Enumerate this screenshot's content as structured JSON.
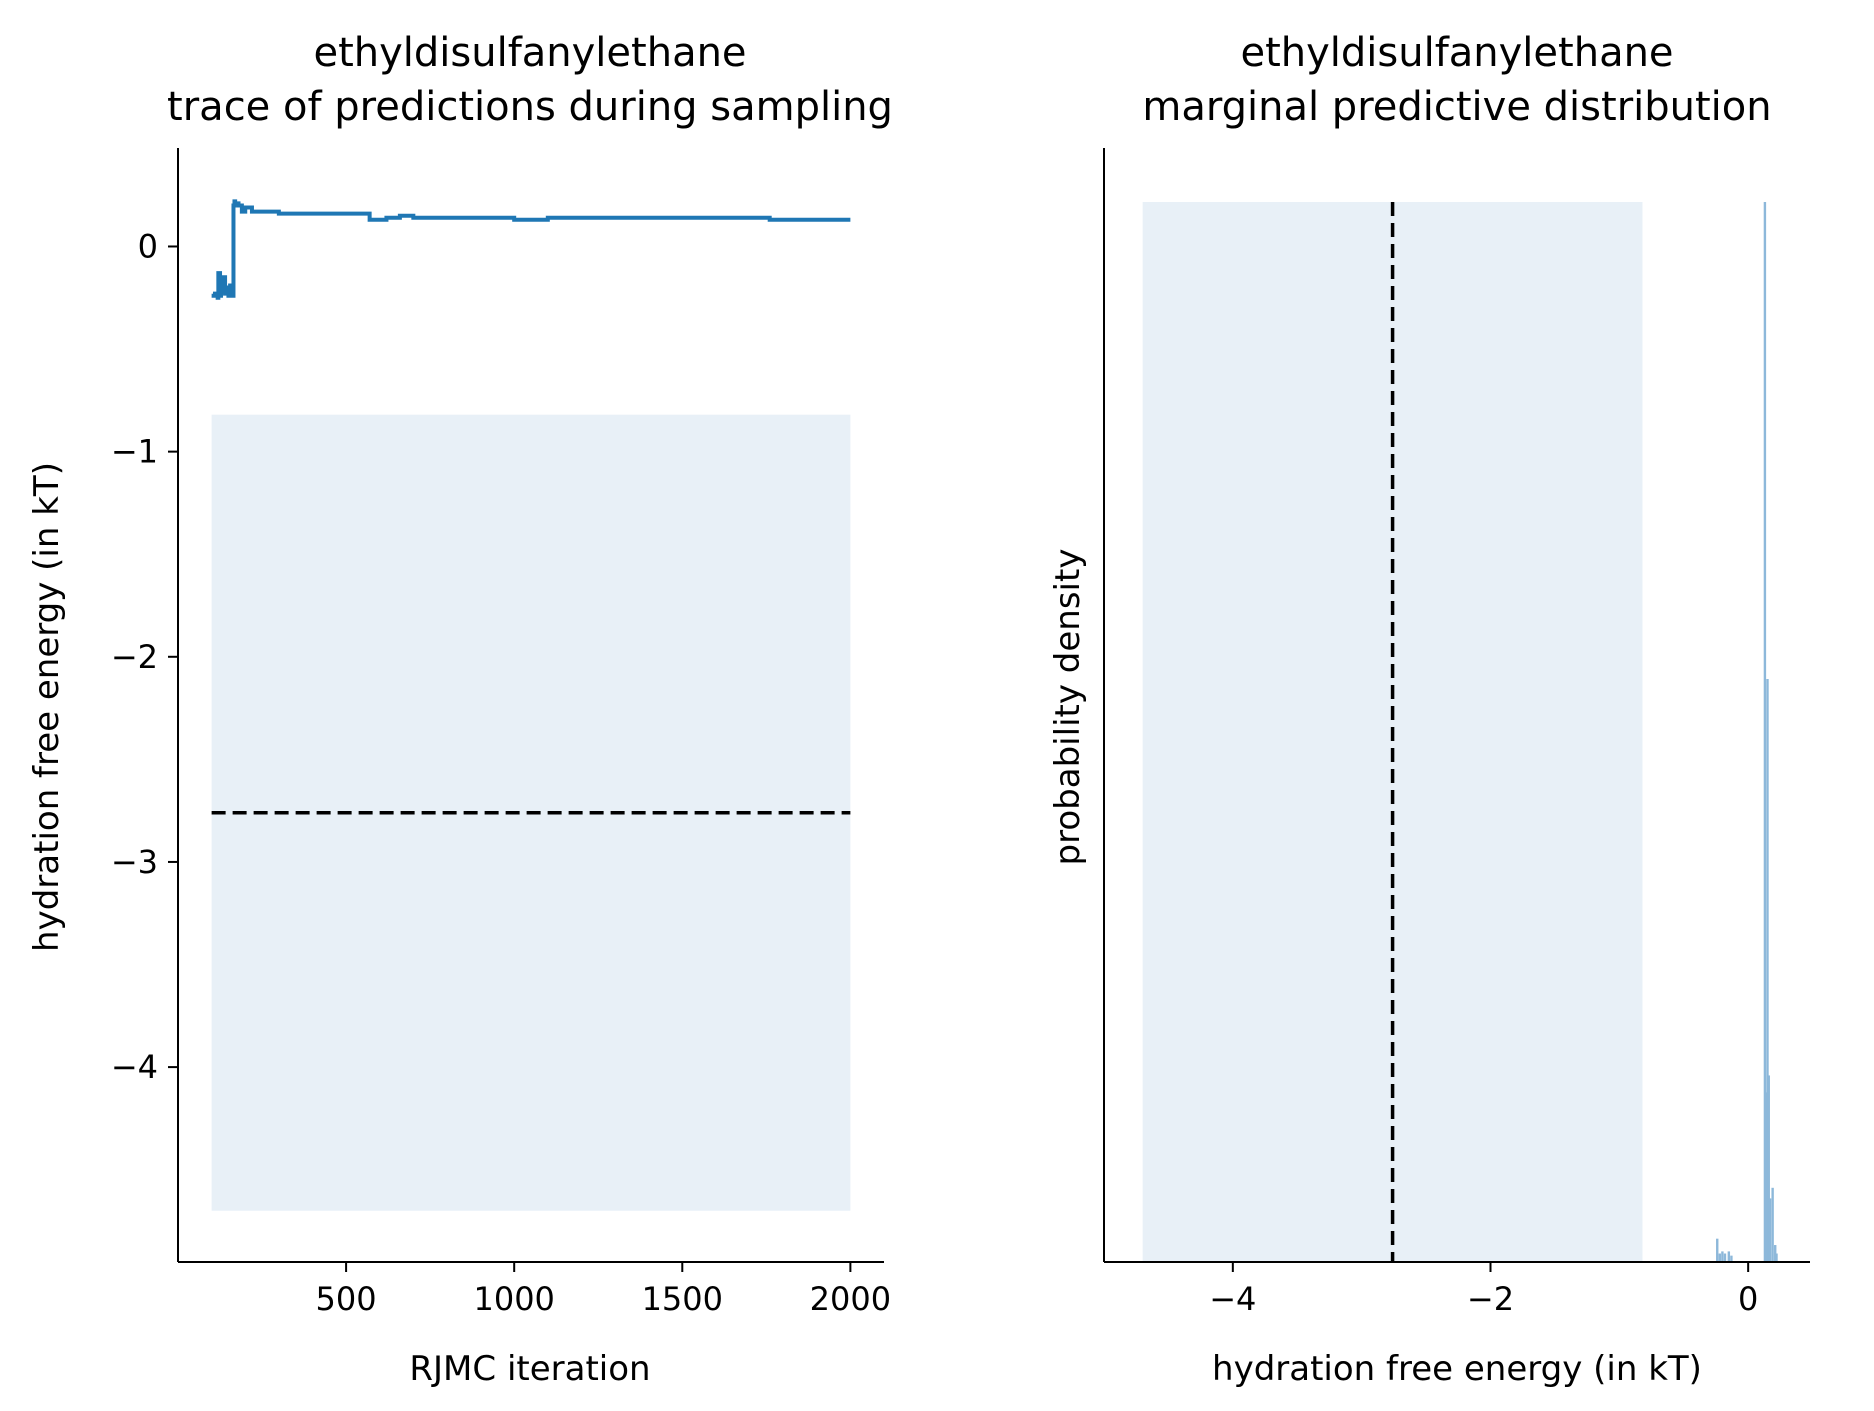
{
  "colors": {
    "trace": "#1f77b4",
    "band": "#e8f0f7",
    "hist": "#8db8da",
    "reference": "#000000",
    "axis": "#000000"
  },
  "chart_data": [
    {
      "type": "line",
      "title_line1": "ethyldisulfanylethane",
      "title_line2": "trace of predictions during sampling",
      "xlabel": "RJMC iteration",
      "ylabel": "hydration free energy (in kT)",
      "xlim": [
        0,
        2100
      ],
      "ylim": [
        -4.95,
        0.48
      ],
      "xticks": [
        500,
        1000,
        1500,
        2000
      ],
      "xtick_labels": [
        "500",
        "1000",
        "1500",
        "2000"
      ],
      "yticks": [
        0,
        -1,
        -2,
        -3,
        -4
      ],
      "ytick_labels": [
        "0",
        "−1",
        "−2",
        "−3",
        "−4"
      ],
      "reference_value": -2.76,
      "uncertainty_band": {
        "x_range": [
          100,
          2000
        ],
        "y_range": [
          -4.7,
          -0.82
        ]
      },
      "series": [
        {
          "x": [
            100,
            110,
            118,
            120,
            125,
            128,
            132,
            136,
            140,
            145,
            150,
            155,
            160,
            163,
            165,
            168,
            170,
            180,
            190,
            200,
            220,
            250,
            300,
            350,
            400,
            450,
            500,
            550,
            570,
            600,
            620,
            650,
            660,
            700,
            720,
            800,
            900,
            1000,
            1050,
            1100,
            1200,
            1300,
            1400,
            1500,
            1600,
            1700,
            1760,
            1800,
            1900,
            2000
          ],
          "y": [
            -0.24,
            -0.23,
            -0.25,
            -0.13,
            -0.24,
            -0.18,
            -0.22,
            -0.15,
            -0.23,
            -0.2,
            -0.24,
            -0.19,
            -0.22,
            -0.24,
            0.2,
            0.22,
            0.21,
            0.2,
            0.17,
            0.19,
            0.17,
            0.17,
            0.16,
            0.16,
            0.16,
            0.16,
            0.16,
            0.16,
            0.13,
            0.13,
            0.14,
            0.14,
            0.15,
            0.14,
            0.14,
            0.14,
            0.14,
            0.13,
            0.13,
            0.14,
            0.14,
            0.14,
            0.14,
            0.14,
            0.14,
            0.14,
            0.13,
            0.13,
            0.13,
            0.13
          ]
        }
      ]
    },
    {
      "type": "bar",
      "title_line1": "ethyldisulfanylethane",
      "title_line2": "marginal predictive distribution",
      "xlabel": "hydration free energy (in kT)",
      "ylabel": "probability density",
      "xlim": [
        -5.0,
        0.48
      ],
      "xticks": [
        -4,
        -2,
        0
      ],
      "xtick_labels": [
        "−4",
        "−2",
        "0"
      ],
      "reference_value": -2.76,
      "uncertainty_band": {
        "x_range": [
          -4.7,
          -0.82
        ]
      },
      "histogram": {
        "x": [
          -0.24,
          -0.22,
          -0.2,
          -0.18,
          -0.15,
          -0.13,
          0.13,
          0.14,
          0.15,
          0.16,
          0.17,
          0.19,
          0.21,
          0.22
        ],
        "density": [
          0.11,
          0.04,
          0.05,
          0.04,
          0.05,
          0.03,
          5.0,
          0.8,
          2.75,
          0.88,
          0.3,
          0.35,
          0.08,
          0.04
        ],
        "ymax": 5.0
      }
    }
  ]
}
